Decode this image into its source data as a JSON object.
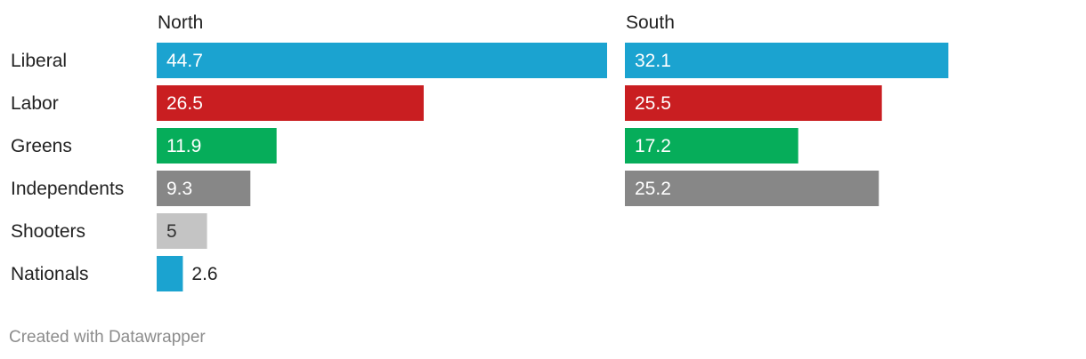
{
  "chart_data": {
    "type": "bar",
    "orientation": "horizontal",
    "categories": [
      "Liberal",
      "Labor",
      "Greens",
      "Independents",
      "Shooters",
      "Nationals"
    ],
    "series": [
      {
        "name": "North",
        "values": [
          44.7,
          26.5,
          11.9,
          9.3,
          5,
          2.6
        ]
      },
      {
        "name": "South",
        "values": [
          32.1,
          25.5,
          17.2,
          25.2,
          null,
          null
        ]
      }
    ],
    "colors": {
      "Liberal": "#1ba3d0",
      "Labor": "#c91e21",
      "Greens": "#06ad5a",
      "Independents": "#878787",
      "Shooters": "#c4c4c4",
      "Nationals": "#1ba3d0"
    },
    "label_colors": {
      "inside_dark_bar": "#ffffff",
      "inside_light_bar": "#333333",
      "outside": "#222222"
    },
    "xlim": [
      0,
      44.7
    ],
    "grid": false,
    "legend": "none"
  },
  "footer": {
    "credit": "Created with Datawrapper"
  }
}
